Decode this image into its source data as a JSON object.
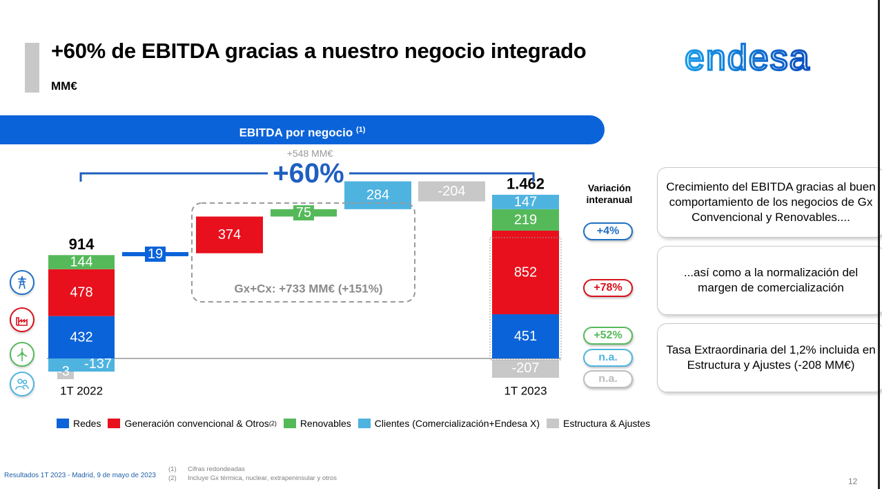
{
  "header": {
    "title": "+60% de EBITDA gracias a nuestro negocio integrado",
    "unit": "MM€",
    "logo_text": "endesa"
  },
  "banner": {
    "label": "EBITDA por negocio",
    "note": "(1)"
  },
  "chart_data": {
    "type": "waterfall",
    "title": "EBITDA por negocio",
    "unit": "MM€",
    "periods": [
      {
        "label": "1T 2022",
        "total": "914",
        "segments": [
          {
            "series": "Redes",
            "value": 432
          },
          {
            "series": "Generación convencional & Otros",
            "value": 478
          },
          {
            "series": "Renovables",
            "value": 144
          },
          {
            "series": "Estructura & Ajustes",
            "value": -3
          },
          {
            "series": "Clientes (Comercialización+Endesa X)",
            "value": -137
          }
        ],
        "labels": [
          "432",
          "478",
          "144",
          "-3",
          "-137"
        ]
      },
      {
        "label": "1T 2023",
        "total": "1.462",
        "segments": [
          {
            "series": "Redes",
            "value": 451
          },
          {
            "series": "Generación convencional & Otros",
            "value": 852
          },
          {
            "series": "Renovables",
            "value": 219
          },
          {
            "series": "Clientes (Comercialización+Endesa X)",
            "value": 147
          },
          {
            "series": "Estructura & Ajustes",
            "value": -207
          }
        ],
        "labels": [
          "451",
          "852",
          "219",
          "147",
          "-207"
        ]
      }
    ],
    "variations": [
      {
        "series": "Redes",
        "value": 19,
        "label": "19"
      },
      {
        "series": "Generación convencional & Otros",
        "value": 374,
        "label": "374"
      },
      {
        "series": "Renovables",
        "value": 75,
        "label": "75"
      },
      {
        "series": "Clientes (Comercialización+Endesa X)",
        "value": 284,
        "label": "284"
      },
      {
        "series": "Estructura & Ajustes",
        "value": -204,
        "label": "-204"
      }
    ],
    "group_note": "Gx+Cx: +733 MM€ (+151%)",
    "total_change": "+548 MM€",
    "total_change_pct": "+60%",
    "colors": {
      "Redes": "#0b63d9",
      "Generación convencional & Otros": "#e8101c",
      "Renovables": "#55b95a",
      "Clientes (Comercialización+Endesa X)": "#4fb3e0",
      "Estructura & Ajustes": "#c8c8c8"
    }
  },
  "variation_panel": {
    "label_line1": "Variación",
    "label_line2": "interanual",
    "items": [
      {
        "value": "+4%",
        "color": "#1f6fc5"
      },
      {
        "value": "+78%",
        "color": "#d9101c"
      },
      {
        "value": "+52%",
        "color": "#55b95a"
      },
      {
        "value": "n.a.",
        "color": "#4fb3e0"
      },
      {
        "value": "n.a.",
        "color": "#bdbdbd"
      }
    ]
  },
  "commentary": [
    "Crecimiento del EBITDA gracias al buen comportamiento de los negocios de Gx Convencional y Renovables....",
    "...así como a la normalización del margen de comercialización",
    "Tasa Extraordinaria del 1,2% incluida en Estructura y Ajustes (-208 MM€)"
  ],
  "legend": [
    {
      "label": "Redes",
      "color": "#0b63d9",
      "sup": ""
    },
    {
      "label": "Generación convencional & Otros",
      "color": "#e8101c",
      "sup": "(2)"
    },
    {
      "label": "Renovables",
      "color": "#55b95a",
      "sup": ""
    },
    {
      "label": "Clientes (Comercialización+Endesa X)",
      "color": "#4fb3e0",
      "sup": ""
    },
    {
      "label": "Estructura & Ajustes",
      "color": "#c8c8c8",
      "sup": ""
    }
  ],
  "icons": [
    {
      "name": "grid-tower-icon",
      "color": "#1f6fc5"
    },
    {
      "name": "factory-icon",
      "color": "#d9101c"
    },
    {
      "name": "wind-turbine-icon",
      "color": "#55b95a"
    },
    {
      "name": "people-icon",
      "color": "#4fb3e0"
    }
  ],
  "footer": {
    "source": "Resultados 1T 2023 - Madrid, 9 de mayo de 2023",
    "notes": [
      {
        "num": "(1)",
        "text": "Cifras redondeadas"
      },
      {
        "num": "(2)",
        "text": "Incluye Gx térmica, nuclear, extrapeninsular y otros"
      }
    ],
    "page": "12"
  }
}
